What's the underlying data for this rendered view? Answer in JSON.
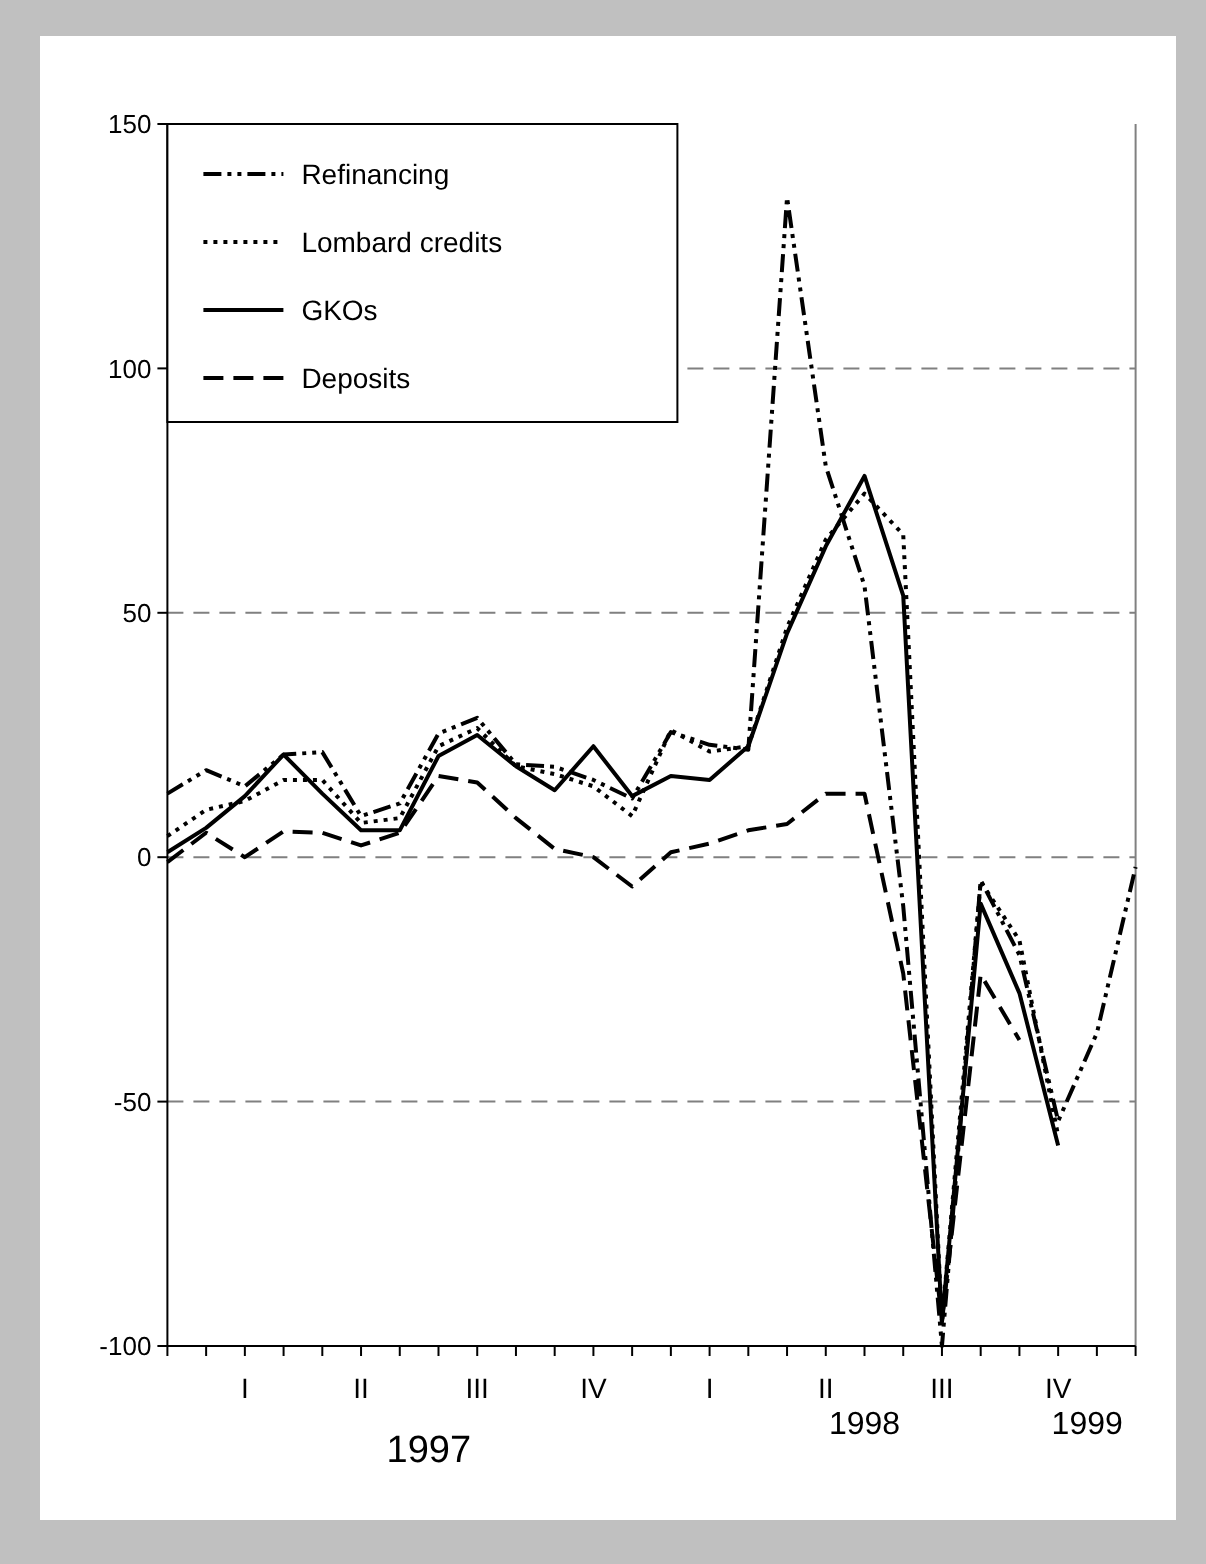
{
  "chart_data": {
    "type": "line",
    "categories": [
      null,
      null,
      "I",
      null,
      null,
      "II",
      null,
      null,
      "III",
      null,
      null,
      "IV",
      null,
      null,
      "I",
      null,
      null,
      "II",
      null,
      null,
      "III",
      null,
      null,
      "IV",
      null,
      null
    ],
    "ylim": [
      -100,
      150
    ],
    "yticks": [
      -100,
      -50,
      0,
      50,
      100,
      150
    ],
    "grid": "y",
    "legend": "top left",
    "annotations": [
      "1997",
      "1998",
      "1999"
    ],
    "series": [
      {
        "name": "Refinancing",
        "color": "#000000",
        "line_style": "dashdot",
        "values": [
          13,
          17.8,
          14.5,
          21,
          21.5,
          8.4,
          11,
          25.3,
          28.5,
          19,
          18.5,
          15.8,
          12,
          25.6,
          23,
          22,
          135,
          80,
          55.5,
          -10,
          -100,
          -4.7,
          -20,
          -54,
          -36,
          -2
        ]
      },
      {
        "name": "Lombard credits",
        "color": "#000000",
        "line_style": "dotted",
        "values": [
          4.3,
          9.7,
          11.5,
          15.8,
          15.8,
          7,
          8,
          22.7,
          26.4,
          18.6,
          17,
          14.5,
          8.4,
          26,
          21.6,
          22.7,
          47,
          65,
          74.4,
          66,
          -95,
          -5,
          -17,
          -57,
          null,
          null
        ]
      },
      {
        "name": "GKOs",
        "color": "#000000",
        "line_style": "solid",
        "values": [
          1,
          6,
          12.5,
          21,
          13,
          5.5,
          5.5,
          20.7,
          25,
          18.6,
          13.7,
          22.7,
          12.5,
          16.6,
          15.8,
          22.7,
          45.8,
          63.6,
          78,
          53.5,
          -95,
          -9.5,
          -27.8,
          -59,
          null,
          null
        ]
      },
      {
        "name": "Deposits",
        "color": "#000000",
        "line_style": "dashed",
        "values": [
          -1,
          5,
          0,
          5.3,
          5,
          2.4,
          5,
          16.6,
          15.3,
          8,
          1.7,
          0,
          -6,
          1,
          2.8,
          5.5,
          6.8,
          13,
          13,
          -23.8,
          -95,
          -24,
          -37.4,
          null,
          null,
          null
        ]
      }
    ]
  }
}
